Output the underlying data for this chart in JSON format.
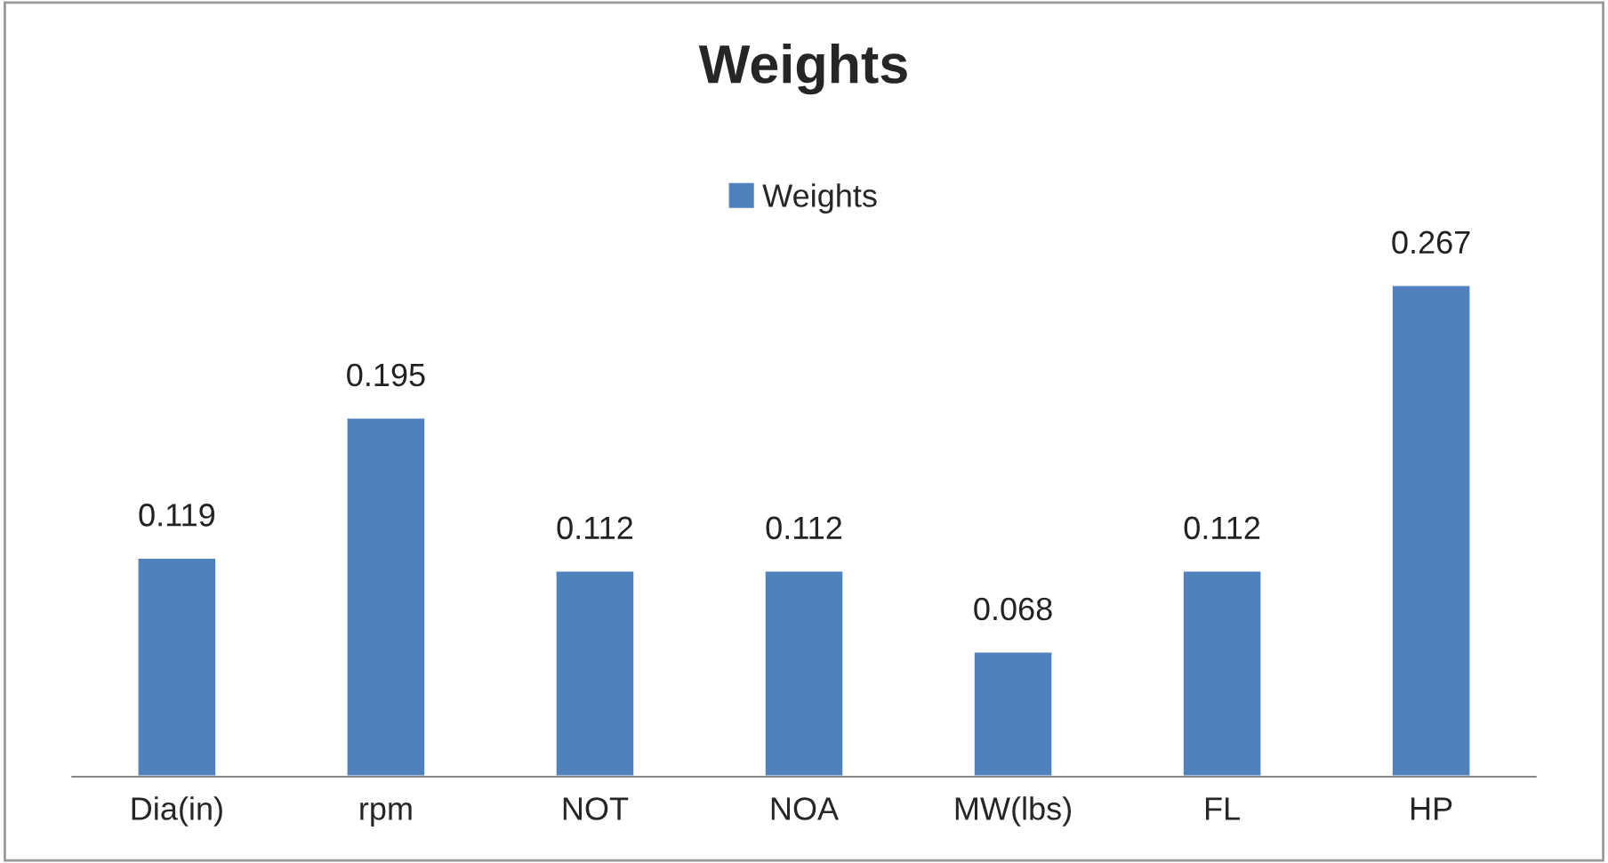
{
  "chart_data": {
    "type": "bar",
    "title": "Weights",
    "categories": [
      "Dia(in)",
      "rpm",
      "NOT",
      "NOA",
      "MW(lbs)",
      "FL",
      "HP"
    ],
    "series": [
      {
        "name": "Weights",
        "color": "#4f81bd",
        "values": [
          0.119,
          0.195,
          0.112,
          0.112,
          0.068,
          0.112,
          0.267
        ]
      }
    ],
    "data_labels": true,
    "legend": "top",
    "grid": false
  }
}
